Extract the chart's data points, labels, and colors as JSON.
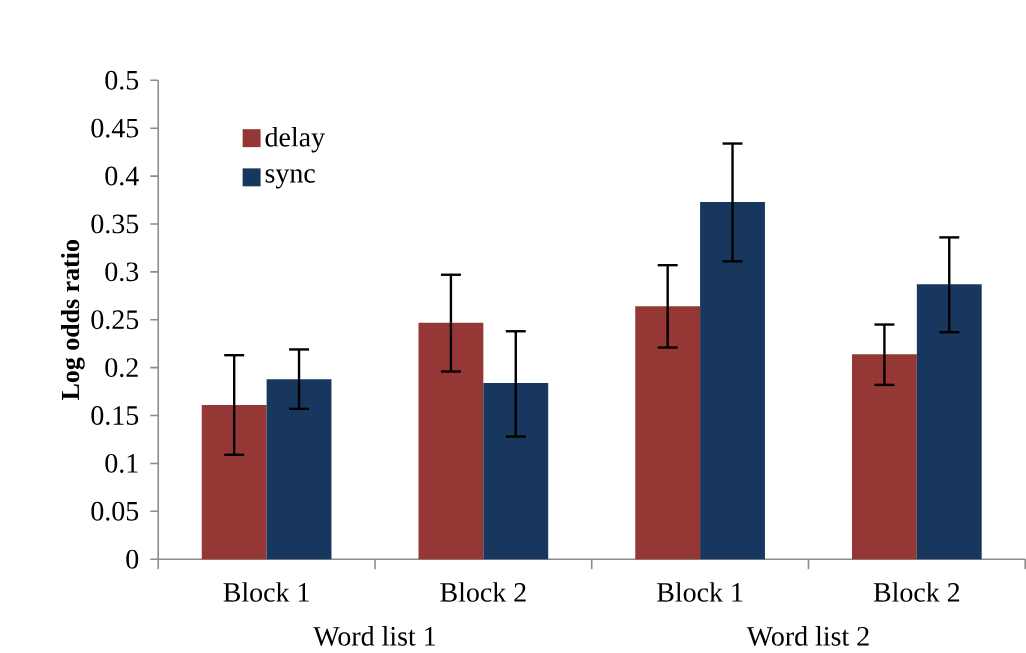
{
  "chart_data": {
    "type": "bar",
    "ylabel": "Log odds ratio",
    "categories": [
      "Block 1",
      "Block 2",
      "Block 1",
      "Block 2"
    ],
    "annotations": [
      "Word list 1",
      "Word list 2"
    ],
    "series": [
      {
        "name": "delay",
        "color": "#953735",
        "values": [
          0.161,
          0.247,
          0.264,
          0.214
        ],
        "errors": [
          [
            0.109,
            0.213
          ],
          [
            0.196,
            0.297
          ],
          [
            0.221,
            0.307
          ],
          [
            0.182,
            0.245
          ]
        ]
      },
      {
        "name": "sync",
        "color": "#17375e",
        "values": [
          0.188,
          0.184,
          0.373,
          0.287
        ],
        "errors": [
          [
            0.157,
            0.219
          ],
          [
            0.128,
            0.238
          ],
          [
            0.311,
            0.434
          ],
          [
            0.237,
            0.336
          ]
        ]
      }
    ],
    "ylim": [
      0,
      0.5
    ],
    "yticks": [
      0,
      0.05,
      0.1,
      0.15,
      0.2,
      0.25,
      0.3,
      0.35,
      0.4,
      0.45,
      0.5
    ],
    "legend": "top left",
    "grid": false
  }
}
